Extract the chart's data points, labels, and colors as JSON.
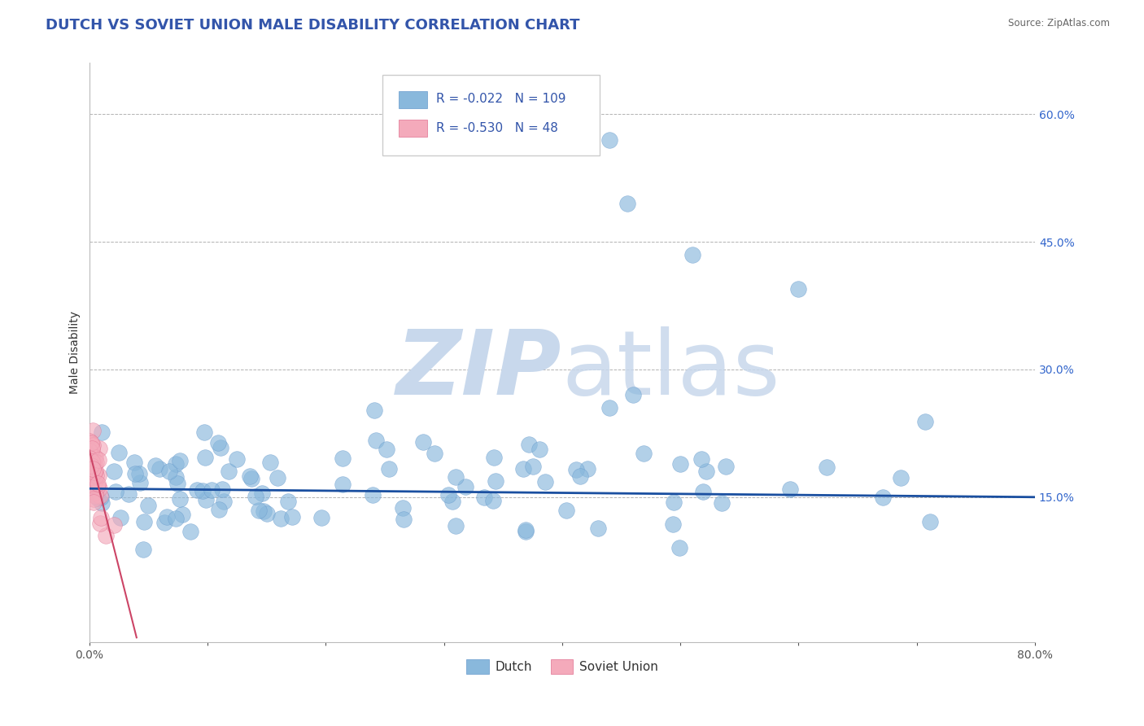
{
  "title": "DUTCH VS SOVIET UNION MALE DISABILITY CORRELATION CHART",
  "source": "Source: ZipAtlas.com",
  "ylabel": "Male Disability",
  "xlim": [
    0.0,
    0.8
  ],
  "ylim": [
    -0.02,
    0.66
  ],
  "yticks": [
    0.15,
    0.3,
    0.45,
    0.6
  ],
  "ytick_labels": [
    "15.0%",
    "30.0%",
    "45.0%",
    "60.0%"
  ],
  "dutch_color": "#89B8DC",
  "dutch_edge": "#6699CC",
  "soviet_color": "#F4AABB",
  "soviet_edge": "#E07090",
  "dutch_R": -0.022,
  "dutch_N": 109,
  "soviet_R": -0.53,
  "soviet_N": 48,
  "trend_blue_color": "#1A4FA0",
  "trend_pink_color": "#CC4466",
  "background_color": "#ffffff",
  "title_color": "#3355AA",
  "legend_text_color": "#3355AA",
  "bottom_legend_text_color": "#333333",
  "watermark_color": "#C8D8EC",
  "title_fontsize": 13,
  "axis_label_fontsize": 10,
  "tick_fontsize": 10
}
